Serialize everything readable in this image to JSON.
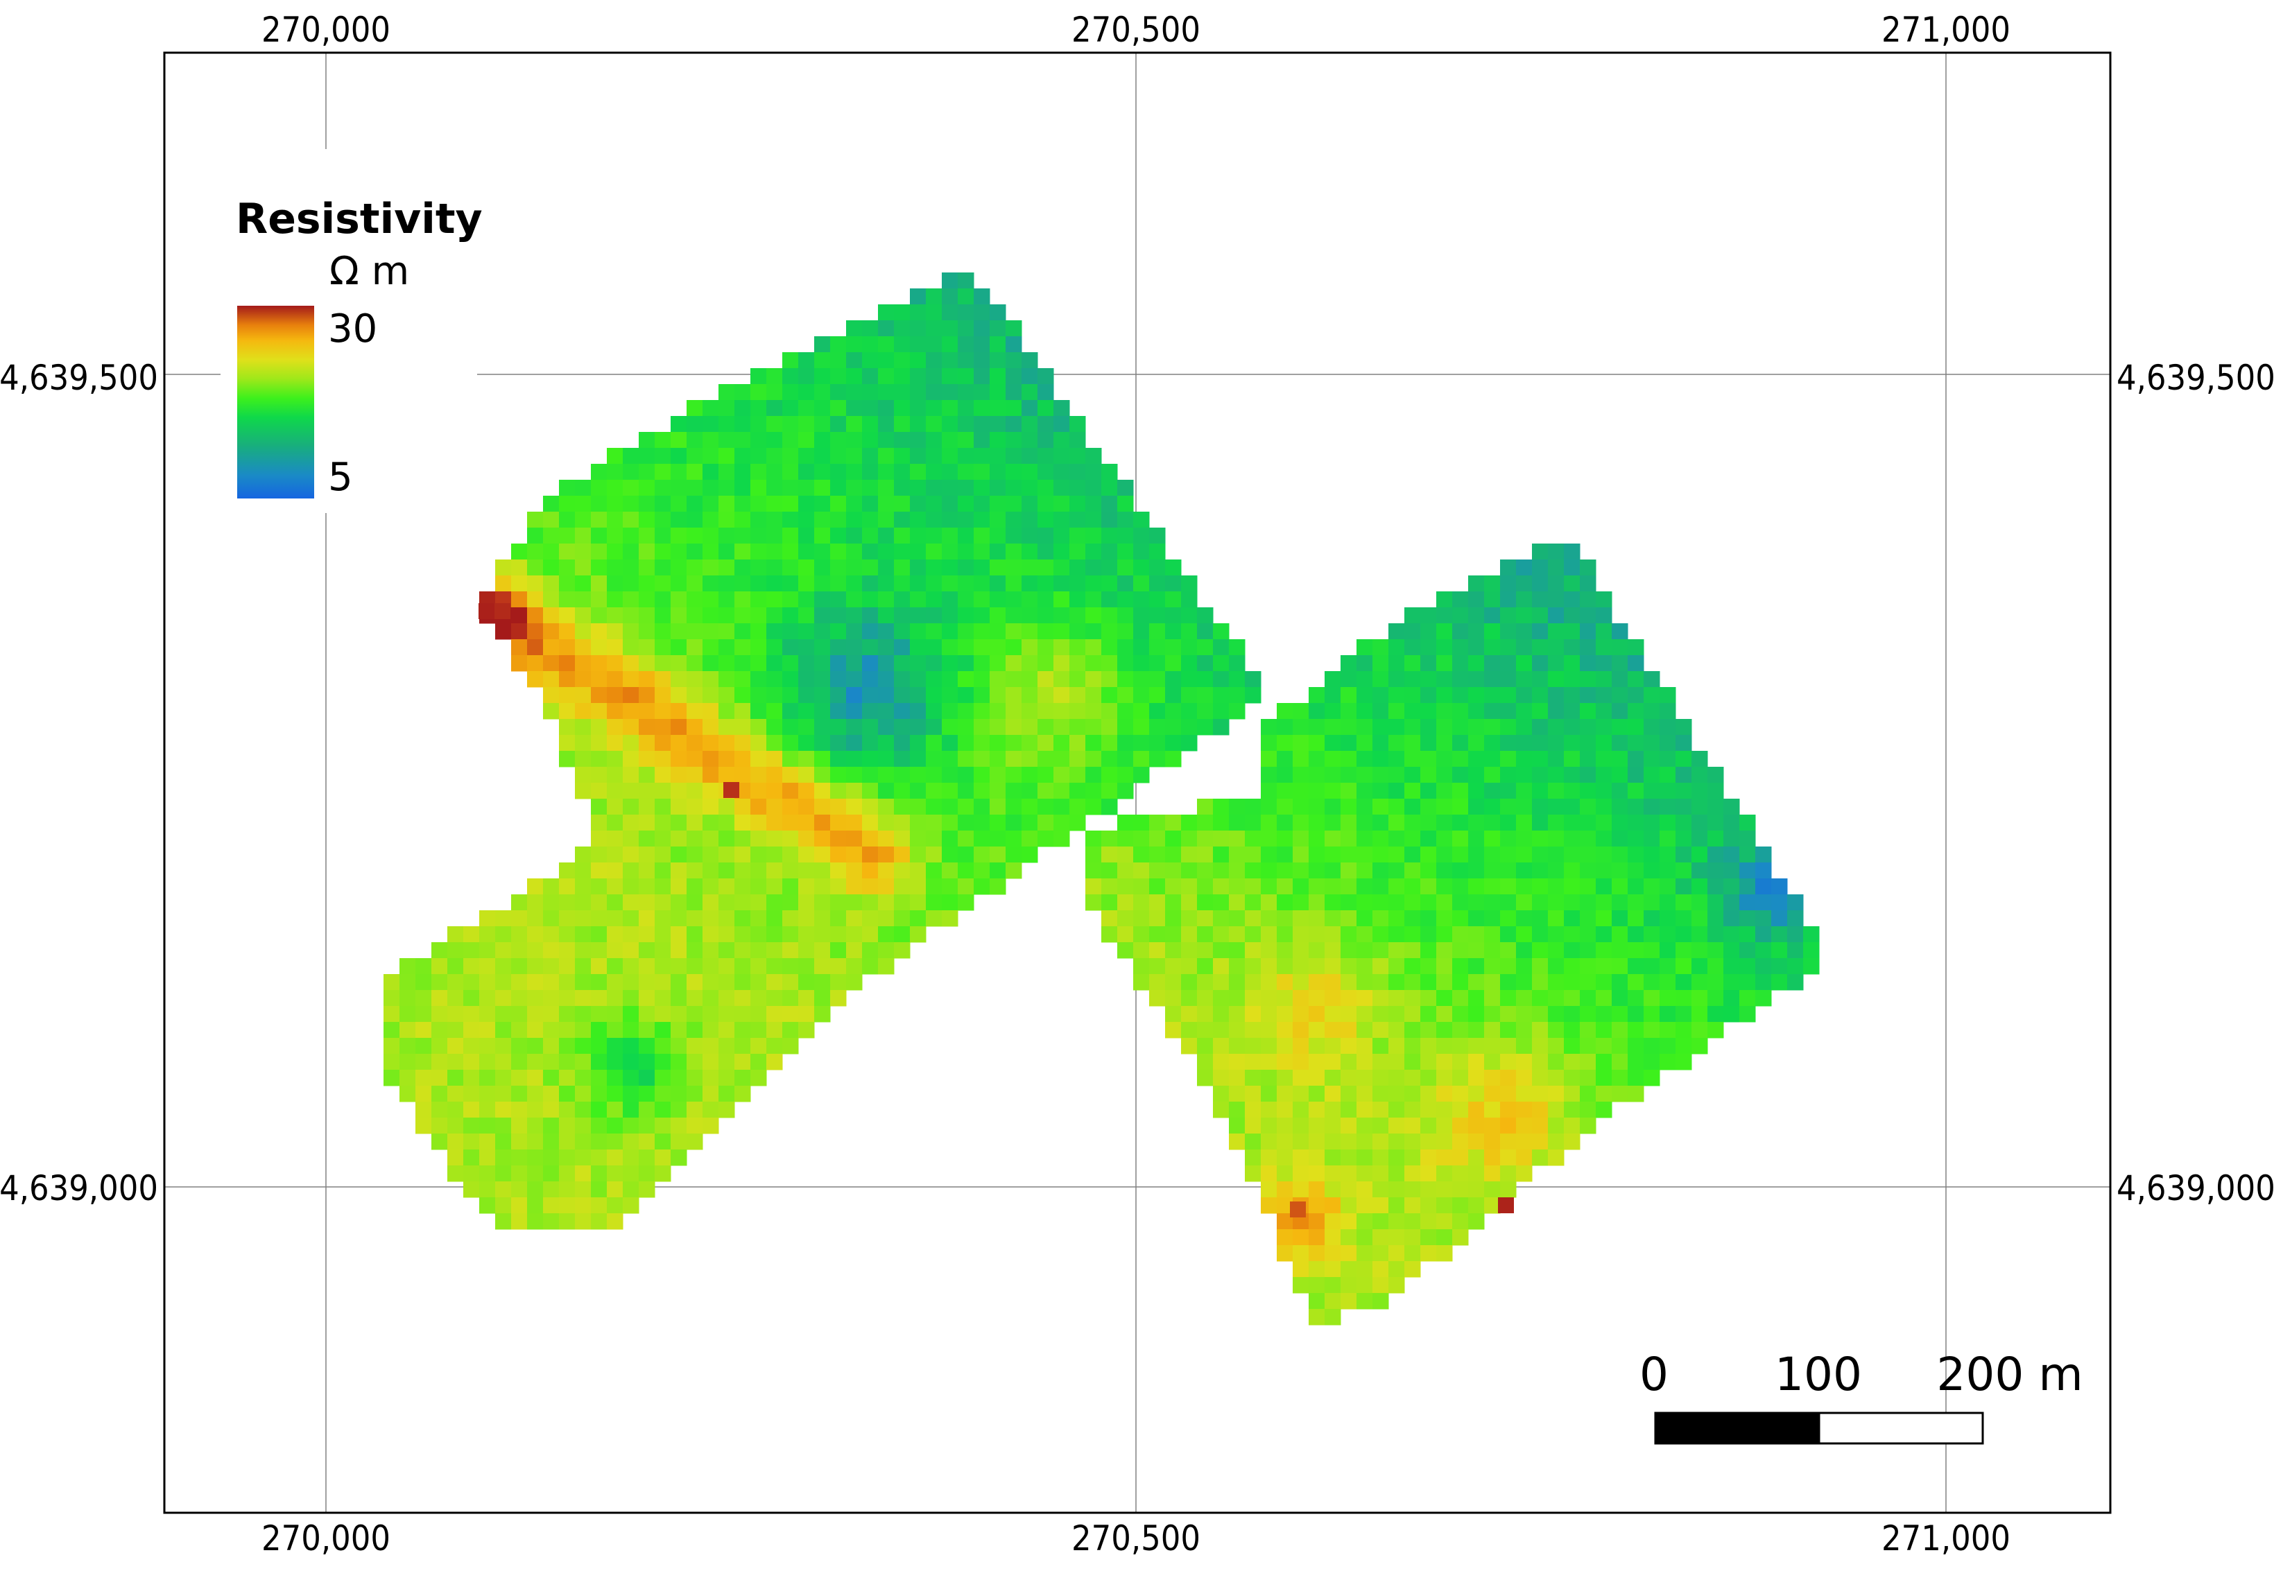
{
  "map": {
    "x_ticks": [
      "270,000",
      "270,500",
      "271,000"
    ],
    "y_ticks": [
      "4,639,500",
      "4,639,000"
    ],
    "x_tick_values": [
      270000,
      270500,
      271000
    ],
    "y_tick_values": [
      4639500,
      4639000
    ],
    "frame_color": "#000000",
    "grid_color": "#808080"
  },
  "legend": {
    "title": "Resistivity",
    "unit": "Ω m",
    "max_label": "30",
    "min_label": "5",
    "max_value": 30,
    "min_value": 5,
    "colormap": [
      "#1565e0",
      "#1a8ac6",
      "#18b07a",
      "#0fd84a",
      "#3df01c",
      "#9ee81a",
      "#e0e01a",
      "#f5b80f",
      "#e8800d",
      "#c0391a",
      "#a41a1a"
    ]
  },
  "scalebar": {
    "labels": [
      "0",
      "100",
      "200 m"
    ],
    "values_m": [
      0,
      100,
      200
    ]
  }
}
